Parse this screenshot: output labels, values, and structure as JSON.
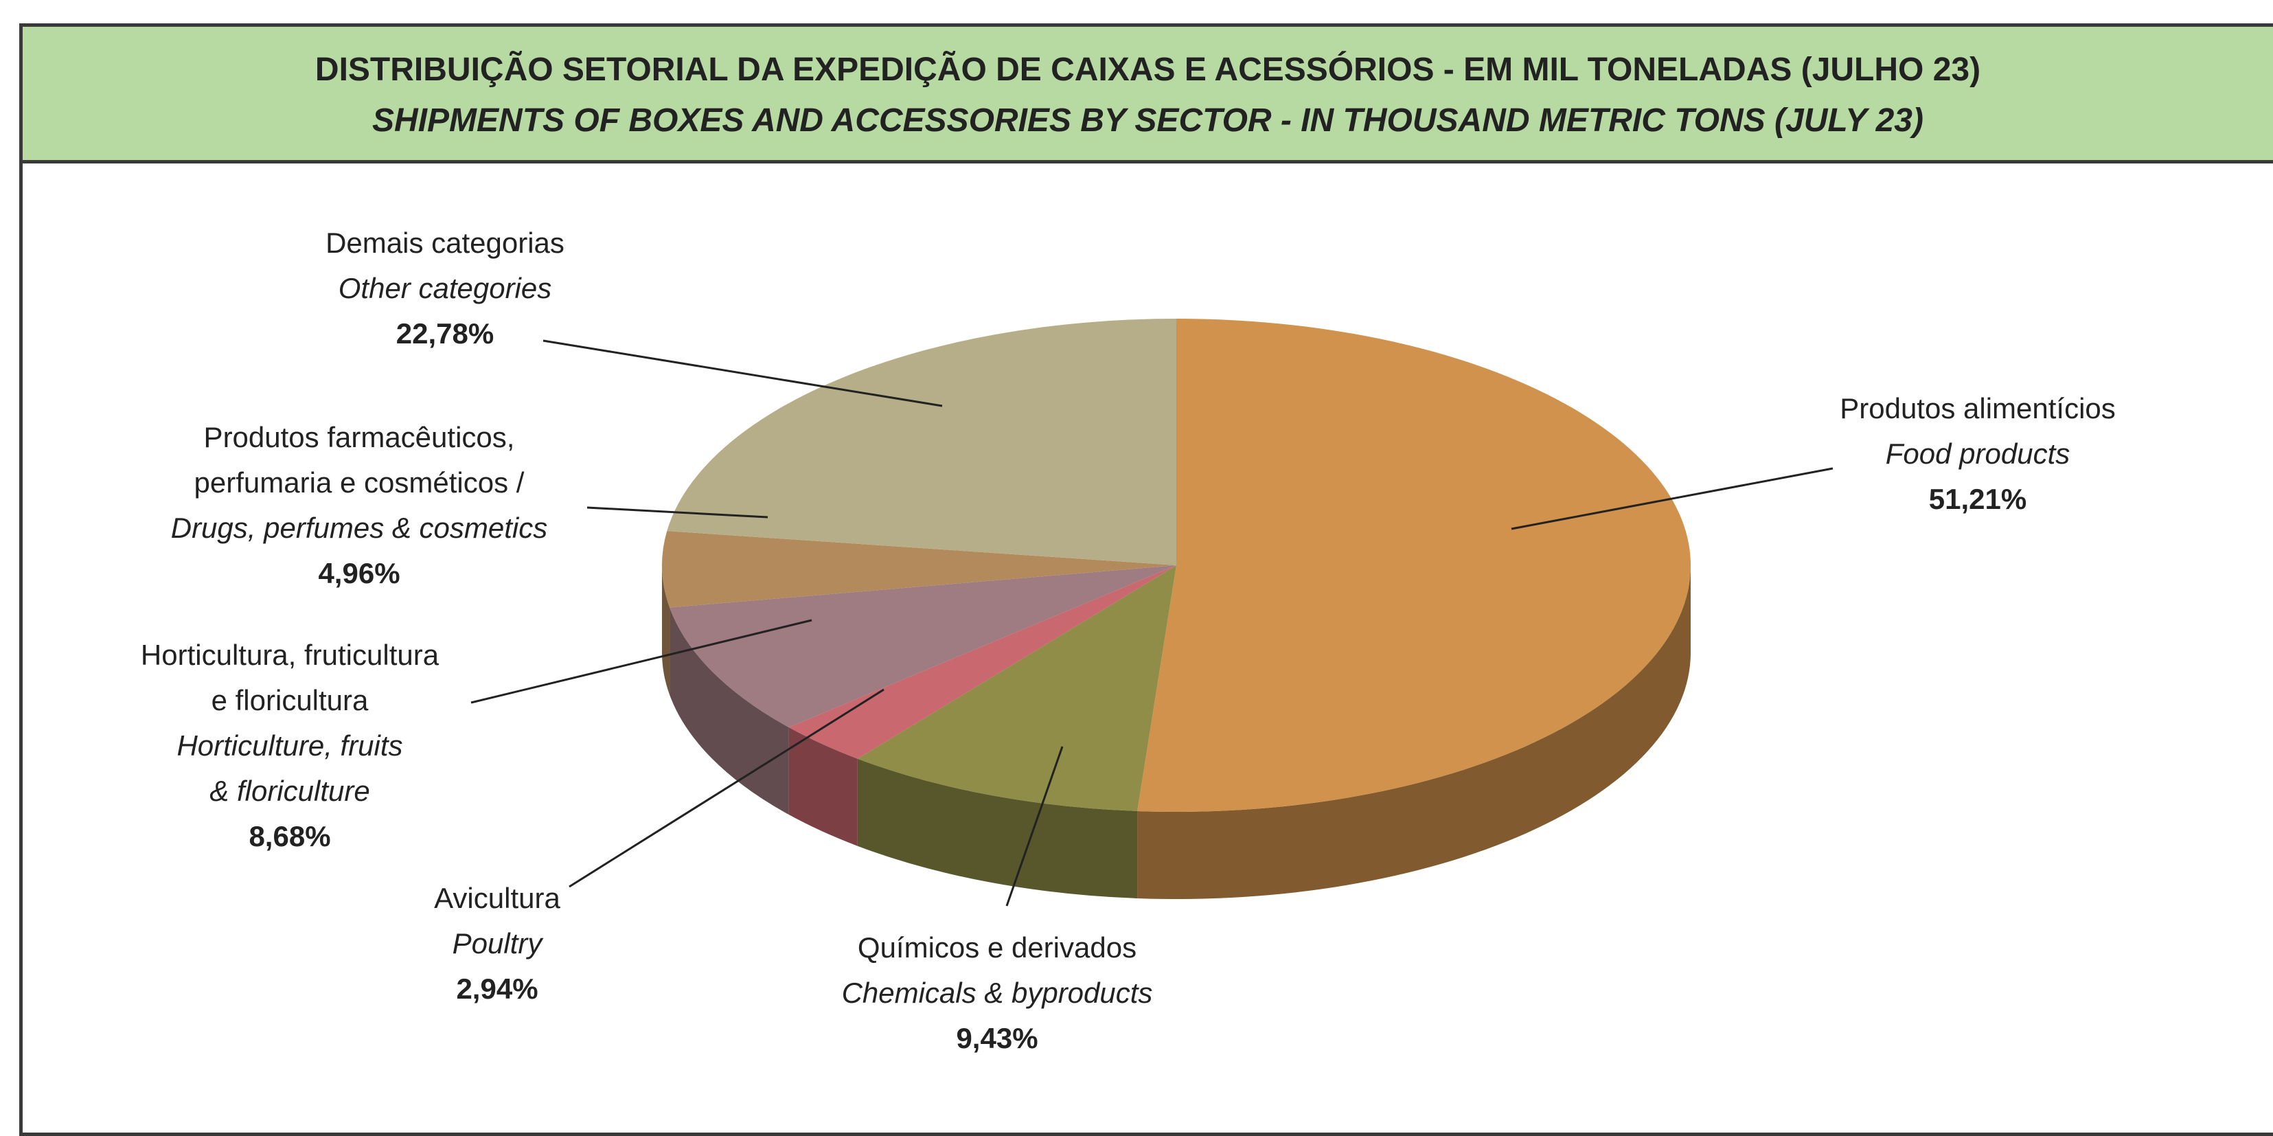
{
  "chart_data": {
    "type": "pie",
    "title": "DISTRIBUIÇÃO SETORIAL DA EXPEDIÇÃO DE CAIXAS E ACESSÓRIOS - EM MIL TONELADAS (JULHO 23)",
    "subtitle": "SHIPMENTS OF BOXES AND ACCESSORIES BY SECTOR - IN THOUSAND METRIC TONS (JULY 23)",
    "categories": [
      "Produtos alimentícios",
      "Químicos e derivados",
      "Avicultura",
      "Horticultura, fruticultura e floricultura",
      "Produtos farmacêuticos, perfumaria e cosméticos /",
      "Demais categorias"
    ],
    "categories_en": [
      "Food products",
      "Chemicals & byproducts",
      "Poultry",
      "Horticulture, fruits & floriculture",
      "Drugs, perfumes & cosmetics",
      "Other categories"
    ],
    "values": [
      51.21,
      9.43,
      2.94,
      8.68,
      4.96,
      22.78
    ],
    "value_labels": [
      "51,21%",
      "9,43%",
      "2,94%",
      "8,68%",
      "4,96%",
      "22,78%"
    ],
    "colors": [
      "#d0924c",
      "#8f8d48",
      "#c9686e",
      "#9f7b82",
      "#b38a5c",
      "#b6ae88"
    ]
  }
}
